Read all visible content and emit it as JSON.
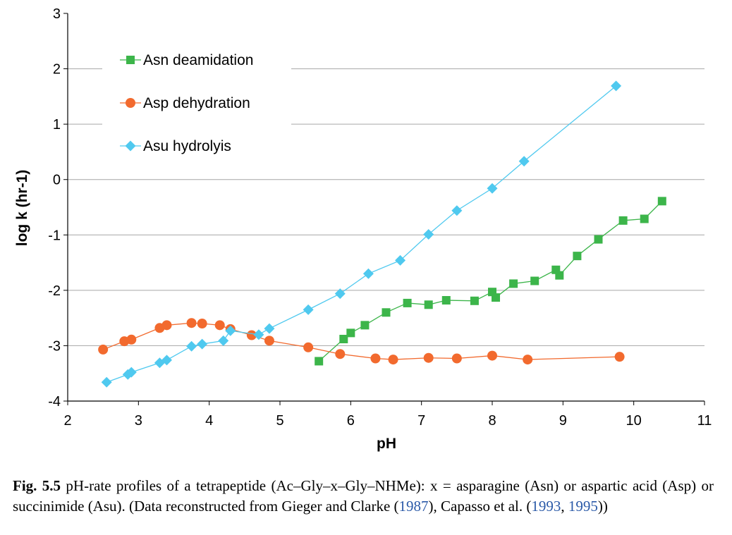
{
  "chart_data": {
    "type": "line",
    "xlabel": "pH",
    "ylabel": "log k (hr-1)",
    "xlim": [
      2,
      11
    ],
    "ylim": [
      -4,
      3
    ],
    "xticks": [
      2,
      3,
      4,
      5,
      6,
      7,
      8,
      9,
      10,
      11
    ],
    "yticks": [
      3,
      2,
      1,
      0,
      -1,
      -2,
      -3,
      -4
    ],
    "grid": "horizontal",
    "legend_position": "top-left",
    "series": [
      {
        "name": "Asn deamidation",
        "marker": "square",
        "color": "#3cb54a",
        "x": [
          5.55,
          5.9,
          6.0,
          6.2,
          6.5,
          6.8,
          7.1,
          7.35,
          7.75,
          8.0,
          8.05,
          8.3,
          8.6,
          8.9,
          8.95,
          9.2,
          9.5,
          9.85,
          10.15,
          10.4
        ],
        "y": [
          -3.28,
          -2.88,
          -2.77,
          -2.63,
          -2.4,
          -2.23,
          -2.26,
          -2.18,
          -2.19,
          -2.03,
          -2.13,
          -1.88,
          -1.83,
          -1.63,
          -1.73,
          -1.38,
          -1.08,
          -0.74,
          -0.71,
          -0.39
        ]
      },
      {
        "name": "Asp dehydration",
        "marker": "circle",
        "color": "#f26a2e",
        "x": [
          2.5,
          2.8,
          2.9,
          3.3,
          3.4,
          3.75,
          3.9,
          4.15,
          4.3,
          4.6,
          4.85,
          5.4,
          5.85,
          6.35,
          6.6,
          7.1,
          7.5,
          8.0,
          8.5,
          9.8
        ],
        "y": [
          -3.07,
          -2.92,
          -2.89,
          -2.68,
          -2.63,
          -2.59,
          -2.6,
          -2.63,
          -2.7,
          -2.81,
          -2.91,
          -3.03,
          -3.15,
          -3.23,
          -3.25,
          -3.22,
          -3.23,
          -3.18,
          -3.25,
          -3.2
        ]
      },
      {
        "name": "Asu hydrolyis",
        "marker": "diamond",
        "color": "#4fc9ef",
        "x": [
          2.55,
          2.85,
          2.9,
          3.3,
          3.4,
          3.75,
          3.9,
          4.2,
          4.3,
          4.7,
          4.85,
          5.4,
          5.85,
          6.25,
          6.7,
          7.1,
          7.5,
          8.0,
          8.45,
          9.75
        ],
        "y": [
          -3.66,
          -3.52,
          -3.48,
          -3.31,
          -3.26,
          -3.01,
          -2.97,
          -2.91,
          -2.73,
          -2.8,
          -2.69,
          -2.35,
          -2.06,
          -1.7,
          -1.46,
          -0.99,
          -0.56,
          -0.16,
          0.33,
          1.69
        ]
      }
    ]
  },
  "caption": {
    "label": "Fig. 5.5",
    "text": "pH-rate profiles of a tetrapeptide (Ac–Gly–x–Gly–NHMe): x = asparagine (Asn) or aspartic acid (Asp) or succinimide (Asu). (Data reconstructed from Gieger and Clarke (",
    "ref1": "1987",
    "text2": "), Capasso et al. (",
    "ref2": "1993",
    "sep": ", ",
    "ref3": "1995",
    "text3": "))"
  }
}
